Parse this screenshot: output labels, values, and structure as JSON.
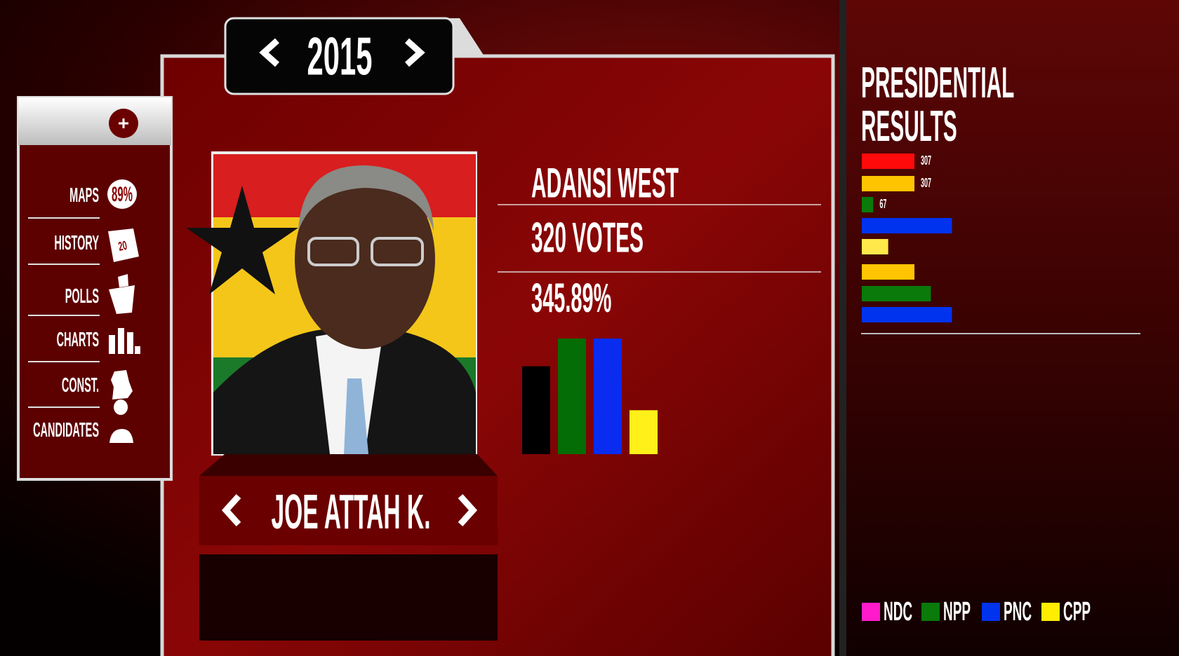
{
  "year_selector": {
    "year": "2015"
  },
  "menu": {
    "items": [
      {
        "label": "MAPS",
        "badge": "89%"
      },
      {
        "label": "HISTORY",
        "badge": "20"
      },
      {
        "label": "POLLS"
      },
      {
        "label": "CHARTS"
      },
      {
        "label": "CONST."
      },
      {
        "label": "CANDIDATES"
      }
    ]
  },
  "candidate": {
    "name": "JOE ATTAH K."
  },
  "constituency": {
    "name": "ADANSI WEST",
    "votes": "320 VOTES",
    "percentage": "345.89%"
  },
  "chart_data": [
    {
      "type": "bar",
      "values": [
        76,
        100,
        100,
        38
      ],
      "colors": [
        "#000000",
        "#056d05",
        "#0a2cf0",
        "#fff01a"
      ]
    },
    {
      "type": "barh",
      "title": "PRESIDENTIAL RESULTS",
      "values": [
        307,
        307,
        67,
        526,
        154,
        307,
        403,
        526
      ],
      "value_labels": [
        "307",
        "307",
        "67",
        null,
        null,
        null,
        null,
        null
      ],
      "colors": [
        "#ff0a0a",
        "#ffc400",
        "#0a7a0a",
        "#0033ee",
        "#ffe94a",
        "#ffc400",
        "#0a7a0a",
        "#0033ee"
      ],
      "legend": [
        {
          "name": "NDC",
          "color": "#ff1acb"
        },
        {
          "name": "NPP",
          "color": "#0a7a0a"
        },
        {
          "name": "PNC",
          "color": "#0033ee"
        },
        {
          "name": "CPP",
          "color": "#ffee00"
        }
      ]
    }
  ]
}
